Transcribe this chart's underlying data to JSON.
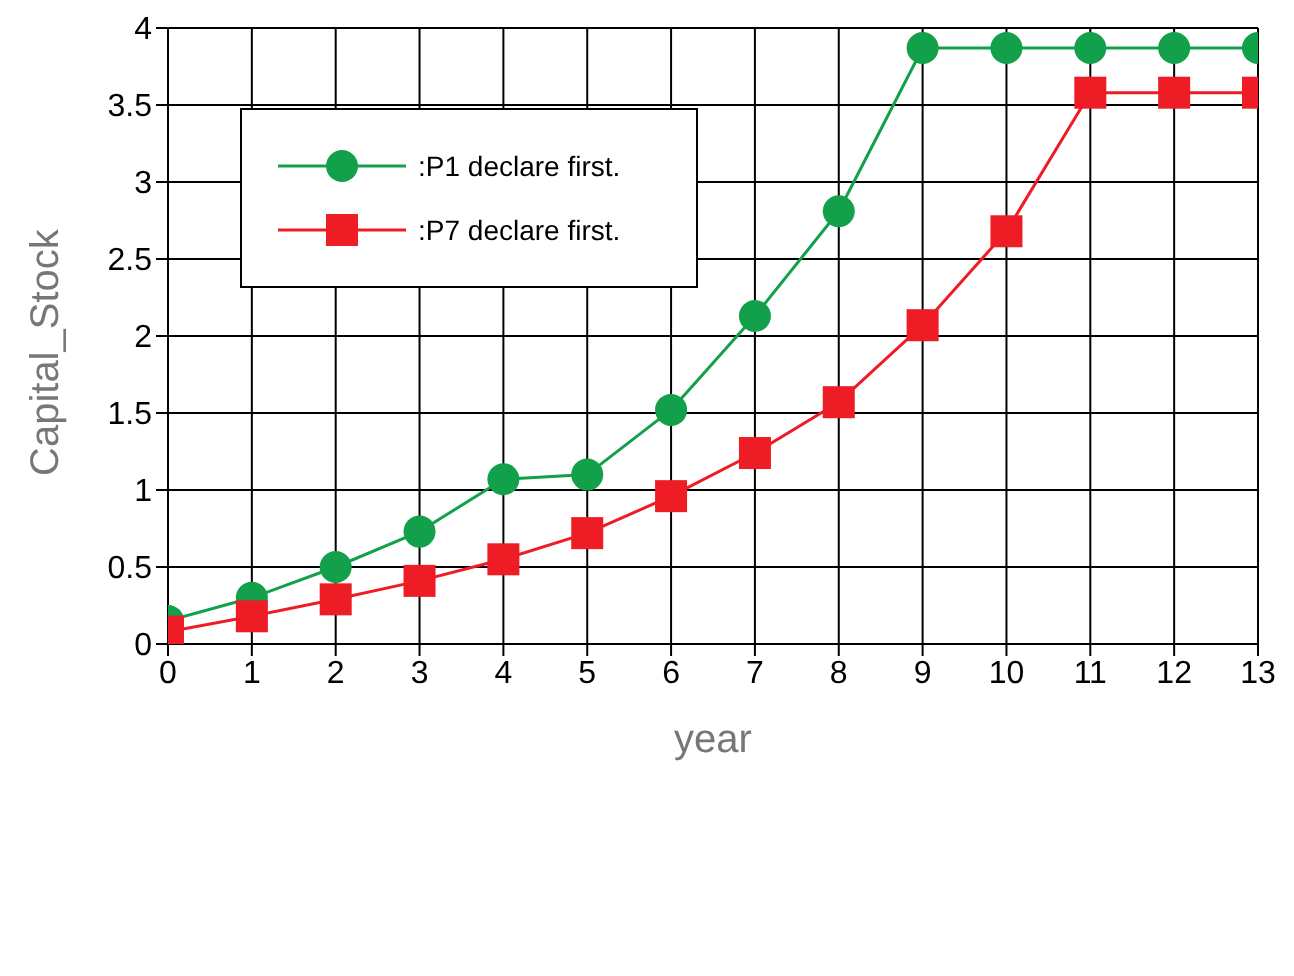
{
  "chart_data": {
    "type": "line",
    "xlabel": "year",
    "ylabel": "Capital_Stock",
    "x": [
      0,
      1,
      2,
      3,
      4,
      5,
      6,
      7,
      8,
      9,
      10,
      11,
      12,
      13
    ],
    "xlim": [
      0,
      13
    ],
    "xticks": [
      0,
      1,
      2,
      3,
      4,
      5,
      6,
      7,
      8,
      9,
      10,
      11,
      12,
      13
    ],
    "ylim": [
      0,
      4
    ],
    "yticks": [
      0,
      0.5,
      1,
      1.5,
      2,
      2.5,
      3,
      3.5,
      4
    ],
    "grid": true,
    "legend": "top left",
    "series": [
      {
        "name": ":P1 declare first.",
        "color": "#13a04a",
        "marker": "circle",
        "values": [
          0.15,
          0.3,
          0.5,
          0.73,
          1.07,
          1.1,
          1.52,
          2.13,
          2.81,
          3.87,
          3.87,
          3.87,
          3.87,
          3.87
        ]
      },
      {
        "name": ":P7 declare first.",
        "color": "#ee1c25",
        "marker": "square",
        "values": [
          0.08,
          0.18,
          0.29,
          0.41,
          0.55,
          0.72,
          0.96,
          1.24,
          1.57,
          2.07,
          2.68,
          3.58,
          3.58,
          3.58
        ]
      }
    ]
  }
}
